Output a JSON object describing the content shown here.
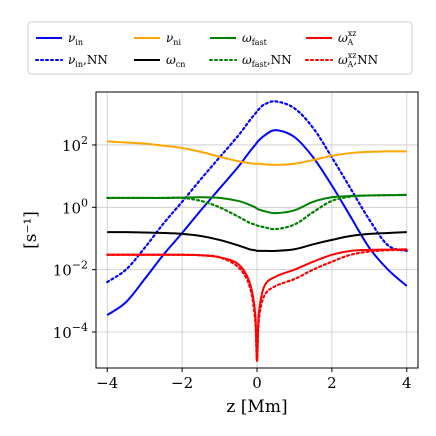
{
  "chart_data": {
    "type": "line",
    "xlabel": "z [Mm]",
    "ylabel": "[s⁻¹]",
    "xlim": [
      -4.3,
      4.3
    ],
    "ylim": [
      7e-06,
      5000
    ],
    "yscale": "log",
    "grid": true,
    "legend_placement": "top, above plot, 4 columns",
    "x_ticks": [
      -4,
      -2,
      0,
      2,
      4
    ],
    "x_tick_labels": [
      "−4",
      "−2",
      "0",
      "2",
      "4"
    ],
    "y_ticks": [
      0.0001,
      0.01,
      1,
      100
    ],
    "y_tick_labels": [
      {
        "base": "10",
        "exp": "−4"
      },
      {
        "base": "10",
        "exp": "−2"
      },
      {
        "base": "10",
        "exp": "0"
      },
      {
        "base": "10",
        "exp": "2"
      }
    ],
    "x": [
      -4.0,
      -3.5,
      -3.0,
      -2.5,
      -2.0,
      -1.5,
      -1.0,
      -0.5,
      -0.2,
      -0.05,
      0.0,
      0.05,
      0.2,
      0.5,
      1.0,
      1.5,
      2.0,
      2.5,
      3.0,
      3.5,
      4.0
    ],
    "series": [
      {
        "name": "ν_in",
        "color": "#0000ff",
        "dash": "solid",
        "values": [
          0.00035,
          0.0009,
          0.005,
          0.03,
          0.15,
          0.8,
          4,
          20,
          60,
          100,
          120,
          140,
          200,
          300,
          180,
          40,
          5,
          0.5,
          0.05,
          0.01,
          0.003
        ]
      },
      {
        "name": "ν_in,NN",
        "color": "#0000ff",
        "dash": "dotted",
        "values": [
          0.004,
          0.01,
          0.05,
          0.3,
          1.5,
          8,
          40,
          200,
          600,
          1000,
          1200,
          1400,
          2000,
          2500,
          1500,
          350,
          40,
          4,
          0.4,
          0.06,
          0.04
        ]
      },
      {
        "name": "ν_ni",
        "color": "#ffa500",
        "dash": "solid",
        "values": [
          130,
          120,
          110,
          95,
          80,
          60,
          42,
          30,
          26,
          25,
          25,
          25,
          24,
          23,
          25,
          33,
          45,
          55,
          60,
          62,
          62
        ]
      },
      {
        "name": "ω_cn",
        "color": "#000000",
        "dash": "solid",
        "values": [
          0.16,
          0.16,
          0.155,
          0.15,
          0.14,
          0.12,
          0.09,
          0.06,
          0.045,
          0.042,
          0.04,
          0.04,
          0.04,
          0.04,
          0.045,
          0.065,
          0.09,
          0.12,
          0.14,
          0.15,
          0.16
        ]
      },
      {
        "name": "ω_fast",
        "color": "#008000",
        "dash": "solid",
        "values": [
          2.0,
          2.0,
          2.0,
          2.0,
          2.05,
          2.1,
          2.0,
          1.6,
          1.2,
          1.0,
          0.9,
          0.85,
          0.75,
          0.65,
          0.8,
          1.5,
          2.1,
          2.3,
          2.4,
          2.45,
          2.5
        ]
      },
      {
        "name": "ω_fast,NN",
        "color": "#008000",
        "dash": "dotted",
        "values": [
          2.0,
          2.0,
          2.0,
          2.0,
          2.0,
          1.6,
          1.0,
          0.5,
          0.32,
          0.28,
          0.26,
          0.25,
          0.23,
          0.2,
          0.28,
          0.7,
          1.6,
          2.2,
          2.4,
          2.45,
          2.5
        ]
      },
      {
        "name": "ω_A^xz",
        "color": "#ff0000",
        "dash": "solid",
        "values": [
          0.03,
          0.03,
          0.03,
          0.03,
          0.03,
          0.029,
          0.025,
          0.015,
          0.004,
          0.0004,
          1.2e-05,
          0.0004,
          0.003,
          0.006,
          0.01,
          0.018,
          0.03,
          0.04,
          0.043,
          0.044,
          0.045
        ]
      },
      {
        "name": "ω_A^xz,NN",
        "color": "#ff0000",
        "dash": "dotted",
        "values": [
          0.03,
          0.03,
          0.03,
          0.03,
          0.03,
          0.029,
          0.025,
          0.012,
          0.003,
          0.00025,
          1.2e-05,
          0.00025,
          0.0015,
          0.003,
          0.005,
          0.01,
          0.018,
          0.03,
          0.038,
          0.042,
          0.043
        ]
      }
    ]
  },
  "legend": [
    {
      "symbol": "ν",
      "sub": "in",
      "sup": "",
      "suffix": "",
      "color": "#0000ff",
      "dash": "solid"
    },
    {
      "symbol": "ν",
      "sub": "ni",
      "sup": "",
      "suffix": "",
      "color": "#ffa500",
      "dash": "solid"
    },
    {
      "symbol": "ω",
      "sub": "fast",
      "sup": "",
      "suffix": "",
      "color": "#008000",
      "dash": "solid"
    },
    {
      "symbol": "ω",
      "sub": "A",
      "sup": "xz",
      "suffix": "",
      "color": "#ff0000",
      "dash": "solid"
    },
    {
      "symbol": "ν",
      "sub": "in",
      "sup": "",
      "suffix": ",NN",
      "color": "#0000ff",
      "dash": "dotted"
    },
    {
      "symbol": "ω",
      "sub": "cn",
      "sup": "",
      "suffix": "",
      "color": "#000000",
      "dash": "solid"
    },
    {
      "symbol": "ω",
      "sub": "fast",
      "sup": "",
      "suffix": ",NN",
      "color": "#008000",
      "dash": "dotted"
    },
    {
      "symbol": "ω",
      "sub": "A",
      "sup": "xz",
      "suffix": ",NN",
      "color": "#ff0000",
      "dash": "dotted"
    }
  ]
}
